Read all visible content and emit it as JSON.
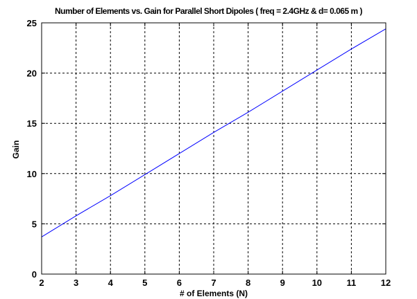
{
  "chart_data": {
    "type": "line",
    "title": "Number of Elements vs. Gain for Parallel Short Dipoles ( freq = 2.4GHz & d= 0.065 m )",
    "xlabel": "# of Elements (N)",
    "ylabel": "Gain",
    "xlim": [
      2,
      12
    ],
    "ylim": [
      0,
      25
    ],
    "xticks": [
      2,
      3,
      4,
      5,
      6,
      7,
      8,
      9,
      10,
      11,
      12
    ],
    "yticks": [
      0,
      5,
      10,
      15,
      20,
      25
    ],
    "grid": true,
    "series": [
      {
        "x": [
          2,
          3,
          4,
          5,
          6,
          7,
          8,
          9,
          10,
          11,
          12
        ],
        "y": [
          3.7,
          5.8,
          7.8,
          9.9,
          12.0,
          14.1,
          16.1,
          18.2,
          20.3,
          22.4,
          24.4
        ],
        "color": "#0000ff"
      }
    ]
  }
}
